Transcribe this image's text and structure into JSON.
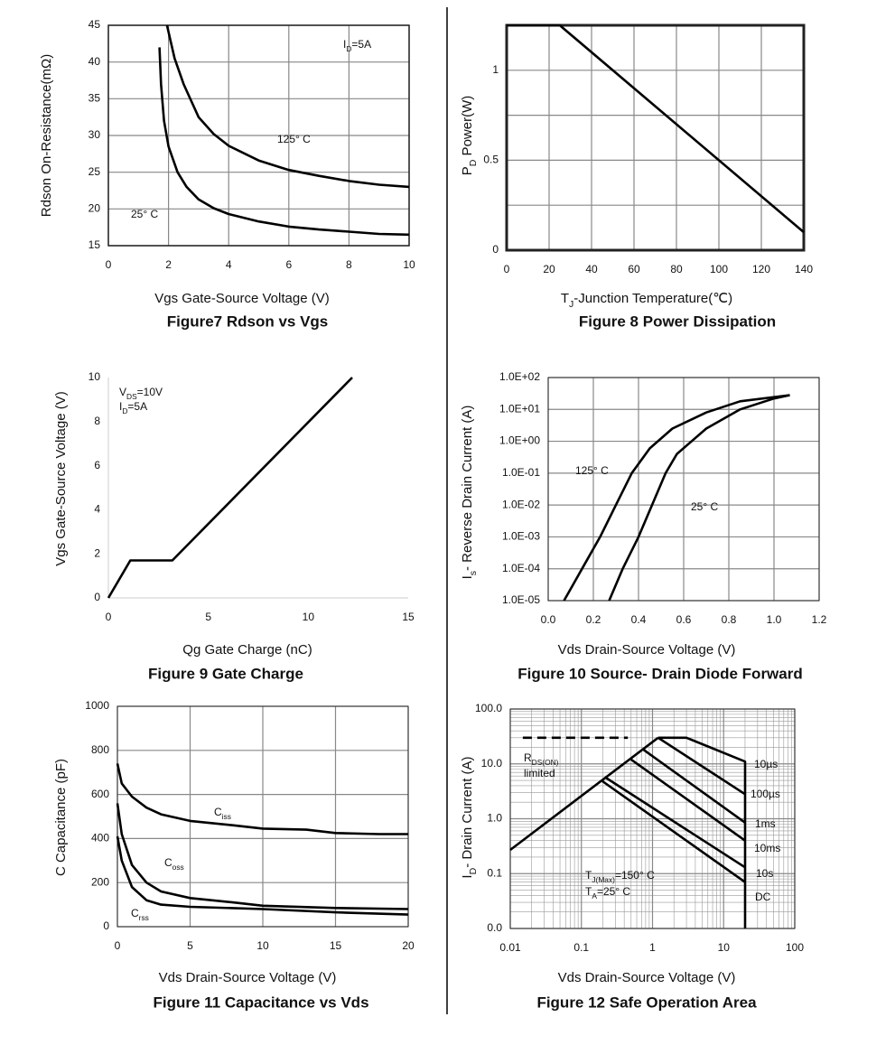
{
  "chart_data": [
    {
      "type": "line",
      "caption": "Figure7 Rdson vs Vgs",
      "xlabel": "Vgs Gate-Source Voltage (V)",
      "ylabel": "Rdson On-Resistance(mΩ)",
      "xlim": [
        0,
        10
      ],
      "ylim": [
        15,
        45
      ],
      "xticks": [
        0,
        2,
        4,
        6,
        8,
        10
      ],
      "yticks": [
        15,
        20,
        25,
        30,
        35,
        40,
        45
      ],
      "grid": true,
      "color": "#000000",
      "annotations": [
        [
          "I",
          "D",
          "=5A"
        ]
      ],
      "series": [
        {
          "name": "125° C",
          "x": [
            1.95,
            2.2,
            2.5,
            3,
            3.5,
            4,
            5,
            6,
            7,
            8,
            9,
            10
          ],
          "values": [
            45,
            40.5,
            37,
            32.5,
            30.2,
            28.6,
            26.6,
            25.3,
            24.5,
            23.8,
            23.3,
            23
          ]
        },
        {
          "name": "25° C",
          "x": [
            1.7,
            1.75,
            1.85,
            2,
            2.3,
            2.6,
            3,
            3.5,
            4,
            5,
            6,
            7,
            8,
            9,
            10
          ],
          "values": [
            42,
            37,
            32,
            28.5,
            25,
            23,
            21.3,
            20.1,
            19.3,
            18.3,
            17.6,
            17.2,
            16.9,
            16.6,
            16.5
          ]
        }
      ]
    },
    {
      "type": "line",
      "caption": "Figure 8 Power Dissipation",
      "xlabel": [
        "T",
        "J",
        "-Junction Temperature(℃)"
      ],
      "ylabel": [
        "P",
        "D",
        "  Power(W)"
      ],
      "xlim": [
        0,
        140
      ],
      "ylim": [
        0,
        1.25
      ],
      "xticks": [
        0,
        20,
        40,
        60,
        80,
        100,
        120,
        140
      ],
      "yticks": [
        0,
        0.5,
        1
      ],
      "yminor_ticks": [
        0.25,
        0.75
      ],
      "grid": true,
      "color": "#000000",
      "series": [
        {
          "x": [
            0,
            25,
            140
          ],
          "values": [
            1.25,
            1.25,
            0.1
          ]
        }
      ]
    },
    {
      "type": "line",
      "caption": "Figure 9 Gate Charge",
      "xlabel": "Qg Gate Charge (nC)",
      "ylabel": "Vgs Gate-Source Voltage (V)",
      "xlim": [
        0,
        15
      ],
      "ylim": [
        0,
        10
      ],
      "xticks": [
        0,
        5,
        10,
        15
      ],
      "yticks": [
        0,
        2,
        4,
        6,
        8,
        10
      ],
      "grid": false,
      "color": "#000000",
      "annotations": [
        [
          "V",
          "DS",
          "=10V"
        ],
        [
          "I",
          "D",
          "=5A"
        ]
      ],
      "series": [
        {
          "x": [
            0,
            1.1,
            3.2,
            12.2
          ],
          "values": [
            0,
            1.7,
            1.7,
            10
          ]
        }
      ]
    },
    {
      "type": "line",
      "caption": "Figure 10 Source- Drain Diode Forward",
      "xlabel": "Vds Drain-Source Voltage (V)",
      "ylabel": [
        "I",
        "s",
        "- Reverse Drain Current (A)"
      ],
      "ylog": true,
      "xlim": [
        0,
        1.2
      ],
      "ylim": [
        1e-05,
        100
      ],
      "xticks": [
        {
          "value": 0,
          "label": "0.0"
        },
        0.2,
        0.4,
        0.6,
        0.8,
        {
          "value": 1,
          "label": "1.0"
        },
        1.2
      ],
      "yticks": [
        {
          "value": 100,
          "label": "1.0E+02"
        },
        {
          "value": 10,
          "label": "1.0E+01"
        },
        {
          "value": 1,
          "label": "1.0E+00"
        },
        {
          "value": 0.1,
          "label": "1.0E-01"
        },
        {
          "value": 0.01,
          "label": "1.0E-02"
        },
        {
          "value": 0.001,
          "label": "1.0E-03"
        },
        {
          "value": 0.0001,
          "label": "1.0E-04"
        },
        {
          "value": 1e-05,
          "label": "1.0E-05"
        }
      ],
      "grid": true,
      "color": "#000000",
      "series": [
        {
          "name": "125° C",
          "x": [
            0.07,
            0.15,
            0.23,
            0.3,
            0.37,
            0.45,
            0.55,
            0.7,
            0.85,
            1.07
          ],
          "values": [
            1e-05,
            0.0001,
            0.001,
            0.01,
            0.1,
            0.6,
            2.5,
            8,
            18,
            28
          ]
        },
        {
          "name": "25° C",
          "x": [
            0.27,
            0.33,
            0.4,
            0.46,
            0.52,
            0.57,
            0.7,
            0.85,
            1.0,
            1.07
          ],
          "values": [
            1e-05,
            0.0001,
            0.001,
            0.01,
            0.1,
            0.4,
            2.5,
            10,
            22,
            28
          ]
        }
      ]
    },
    {
      "type": "line",
      "caption": "Figure 11 Capacitance vs Vds",
      "xlabel": "Vds Drain-Source Voltage (V)",
      "ylabel": "C Capacitance (pF)",
      "xlim": [
        0,
        20
      ],
      "ylim": [
        0,
        1000
      ],
      "xticks": [
        0,
        5,
        10,
        15,
        20
      ],
      "yticks": [
        0,
        200,
        400,
        600,
        800,
        1000
      ],
      "grid": true,
      "color": "#000000",
      "series": [
        {
          "name": [
            "C",
            "iss"
          ],
          "x": [
            0,
            0.3,
            1,
            2,
            3,
            5,
            8,
            10,
            13,
            15,
            18,
            20
          ],
          "values": [
            740,
            650,
            590,
            540,
            510,
            480,
            460,
            445,
            440,
            425,
            420,
            420
          ]
        },
        {
          "name": [
            "C",
            "oss"
          ],
          "x": [
            0,
            0.3,
            1,
            2,
            3,
            5,
            8,
            10,
            15,
            20
          ],
          "values": [
            560,
            420,
            280,
            200,
            160,
            130,
            110,
            95,
            85,
            80
          ]
        },
        {
          "name": [
            "C",
            "rss"
          ],
          "x": [
            0,
            0.3,
            1,
            2,
            3,
            5,
            10,
            15,
            20
          ],
          "values": [
            410,
            300,
            180,
            120,
            100,
            90,
            80,
            65,
            55
          ]
        }
      ]
    },
    {
      "type": "line",
      "caption": "Figure 12 Safe Operation Area",
      "xlabel": "Vds Drain-Source Voltage (V)",
      "ylabel": [
        "I",
        "D",
        "- Drain Current (A)"
      ],
      "xlog": true,
      "ylog": true,
      "xlim": [
        0.01,
        100
      ],
      "ylim": [
        0.01,
        100
      ],
      "xticks": [
        0.01,
        0.1,
        1,
        10,
        100
      ],
      "yticks": [
        {
          "value": 100,
          "label": "100.0"
        },
        {
          "value": 10,
          "label": "10.0"
        },
        {
          "value": 1,
          "label": "1.0"
        },
        {
          "value": 0.1,
          "label": "0.1"
        },
        {
          "value": 0.01,
          "label": "0.0"
        }
      ],
      "grid": true,
      "minor_grid": true,
      "color": "#000000",
      "annotations": [
        [
          "R",
          "DS(ON)"
        ],
        "limited",
        [
          "T",
          "J(Max)",
          "=150° C"
        ],
        [
          "T",
          "A",
          "=25° C"
        ]
      ],
      "series": [
        {
          "x": [
            0.01,
            1.2
          ],
          "values": [
            0.27,
            30
          ]
        },
        {
          "x": [
            0.015,
            0.45
          ],
          "values": [
            30,
            30
          ],
          "dash": true
        },
        {
          "name": "10µs",
          "x": [
            1.2,
            3,
            20,
            20
          ],
          "values": [
            30,
            30,
            11,
            0.01
          ]
        },
        {
          "name": "100µs",
          "x": [
            1.2,
            20
          ],
          "values": [
            30,
            2.8
          ]
        },
        {
          "name": "1ms",
          "x": [
            0.75,
            20
          ],
          "values": [
            18,
            0.85
          ]
        },
        {
          "name": "10ms",
          "x": [
            0.5,
            20
          ],
          "values": [
            12,
            0.4
          ]
        },
        {
          "name": "10s",
          "x": [
            0.22,
            20
          ],
          "values": [
            5.6,
            0.13
          ]
        },
        {
          "name": "DC",
          "x": [
            0.19,
            20
          ],
          "values": [
            5,
            0.07
          ]
        }
      ]
    }
  ]
}
